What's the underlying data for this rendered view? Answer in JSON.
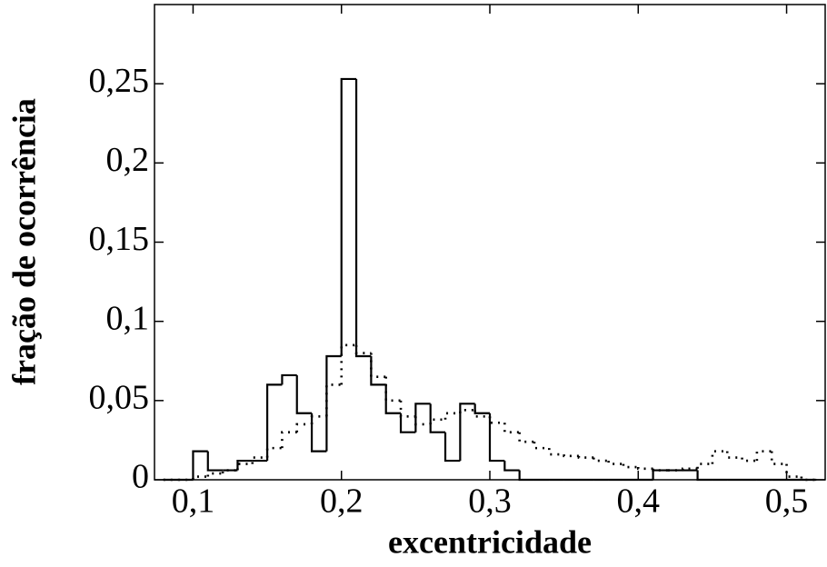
{
  "chart_data": {
    "type": "histogram",
    "xlabel": "excentricidade",
    "ylabel": "fração de ocorrência",
    "bins": [
      0.08,
      0.09,
      0.1,
      0.11,
      0.12,
      0.13,
      0.14,
      0.15,
      0.16,
      0.17,
      0.18,
      0.19,
      0.2,
      0.21,
      0.22,
      0.23,
      0.24,
      0.25,
      0.26,
      0.27,
      0.28,
      0.29,
      0.3,
      0.31,
      0.32,
      0.33,
      0.34,
      0.35,
      0.36,
      0.37,
      0.38,
      0.39,
      0.4,
      0.41,
      0.42,
      0.43,
      0.44,
      0.45,
      0.46,
      0.47,
      0.48,
      0.49,
      0.5,
      0.51,
      0.52
    ],
    "series": [
      {
        "color": "#000000",
        "dash": "none",
        "values": [
          0,
          0,
          0.018,
          0.006,
          0.006,
          0.012,
          0.012,
          0.06,
          0.066,
          0.042,
          0.018,
          0.078,
          0.253,
          0.078,
          0.06,
          0.042,
          0.03,
          0.048,
          0.03,
          0.012,
          0.048,
          0.042,
          0.012,
          0.006,
          0,
          0,
          0,
          0,
          0,
          0,
          0,
          0,
          0,
          0.006,
          0.006,
          0.006,
          0,
          0,
          0,
          0,
          0,
          0,
          0,
          0
        ]
      },
      {
        "color": "#000000",
        "dash": "2 6",
        "values": [
          0,
          0,
          0.002,
          0.004,
          0.006,
          0.01,
          0.014,
          0.02,
          0.03,
          0.035,
          0.04,
          0.06,
          0.085,
          0.08,
          0.065,
          0.05,
          0.04,
          0.035,
          0.038,
          0.042,
          0.044,
          0.04,
          0.036,
          0.03,
          0.024,
          0.02,
          0.016,
          0.015,
          0.014,
          0.012,
          0.01,
          0.008,
          0.007,
          0.006,
          0.006,
          0.007,
          0.01,
          0.018,
          0.014,
          0.012,
          0.018,
          0.01,
          0.002,
          0
        ]
      }
    ],
    "xlim": [
      0.074,
      0.526
    ],
    "ylim": [
      0,
      0.3
    ],
    "xticks": [
      {
        "value": 0.1,
        "label": "0,1"
      },
      {
        "value": 0.2,
        "label": "0,2"
      },
      {
        "value": 0.3,
        "label": "0,3"
      },
      {
        "value": 0.4,
        "label": "0,4"
      },
      {
        "value": 0.5,
        "label": "0,5"
      }
    ],
    "yticks": [
      0,
      {
        "value": 0.05,
        "label": "0,05"
      },
      {
        "value": 0.1,
        "label": "0,1"
      },
      {
        "value": 0.15,
        "label": "0,15"
      },
      {
        "value": 0.2,
        "label": "0,2"
      },
      {
        "value": 0.25,
        "label": "0,25"
      }
    ]
  }
}
